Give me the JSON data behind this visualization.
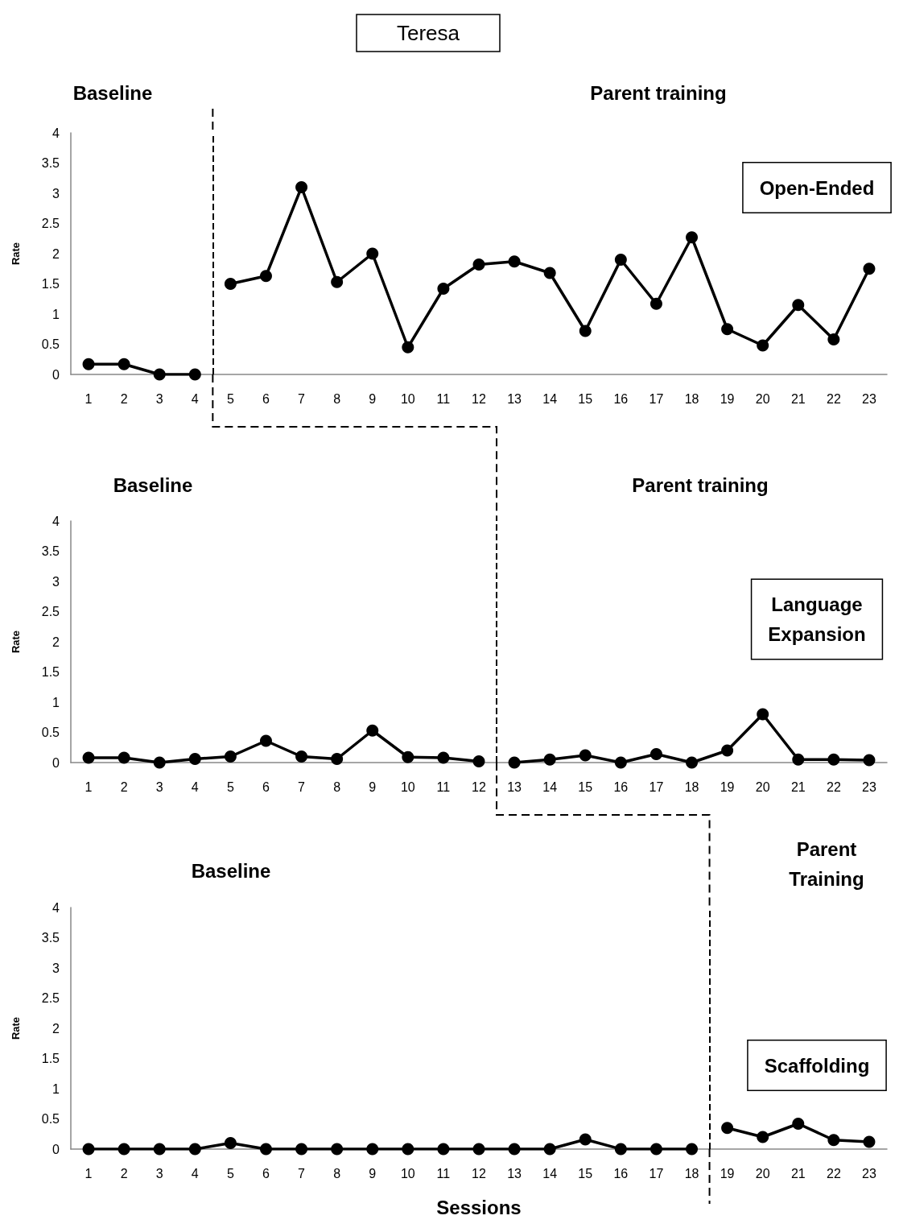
{
  "chart_data": [
    {
      "type": "line",
      "title": "Teresa",
      "ylabel": "Rate",
      "annotations": [
        "Baseline",
        "Parent training",
        "Open-Ended"
      ],
      "xlim": [
        0.5,
        23.5
      ],
      "xticks": [
        1,
        2,
        3,
        4,
        5,
        6,
        7,
        8,
        9,
        10,
        11,
        12,
        13,
        14,
        15,
        16,
        17,
        18,
        19,
        20,
        21,
        22,
        23
      ],
      "ylim": [
        0,
        4
      ],
      "yticks": [
        0,
        0.5,
        1,
        1.5,
        2,
        2.5,
        3,
        3.5,
        4
      ],
      "marker": "circle",
      "line_style": "solid",
      "ref_lines": [
        {
          "axis": "x",
          "value": 4.5,
          "line_style": "dashed",
          "color": "#000000"
        }
      ],
      "series": [
        {
          "color": "#000000",
          "x": [
            1,
            2,
            3,
            4
          ],
          "values": [
            0.17,
            0.17,
            0,
            0
          ]
        },
        {
          "color": "#000000",
          "x": [
            5,
            6,
            7,
            8,
            9,
            10,
            11,
            12,
            13,
            14,
            15,
            16,
            17,
            18,
            19,
            20,
            21,
            22,
            23
          ],
          "values": [
            1.5,
            1.63,
            3.1,
            1.53,
            2.0,
            0.45,
            1.42,
            1.82,
            1.87,
            1.68,
            0.72,
            1.9,
            1.17,
            2.27,
            0.75,
            0.48,
            1.15,
            0.58,
            1.75
          ]
        }
      ]
    },
    {
      "type": "line",
      "ylabel": "Rate",
      "annotations": [
        "Baseline",
        "Parent training",
        "Language\nExpansion"
      ],
      "xlim": [
        0.5,
        23.5
      ],
      "xticks": [
        1,
        2,
        3,
        4,
        5,
        6,
        7,
        8,
        9,
        10,
        11,
        12,
        13,
        14,
        15,
        16,
        17,
        18,
        19,
        20,
        21,
        22,
        23
      ],
      "ylim": [
        0,
        4
      ],
      "yticks": [
        0,
        0.5,
        1,
        1.5,
        2,
        2.5,
        3,
        3.5,
        4
      ],
      "marker": "circle",
      "line_style": "solid",
      "ref_lines": [
        {
          "axis": "x",
          "value": 12.5,
          "line_style": "dashed",
          "color": "#000000"
        }
      ],
      "series": [
        {
          "color": "#000000",
          "x": [
            1,
            2,
            3,
            4,
            5,
            6,
            7,
            8,
            9,
            10,
            11,
            12
          ],
          "values": [
            0.08,
            0.08,
            0,
            0.06,
            0.1,
            0.36,
            0.1,
            0.06,
            0.53,
            0.09,
            0.08,
            0.02
          ]
        },
        {
          "color": "#000000",
          "x": [
            13,
            14,
            15,
            16,
            17,
            18,
            19,
            20,
            21,
            22,
            23
          ],
          "values": [
            0,
            0.05,
            0.12,
            0,
            0.14,
            0,
            0.2,
            0.8,
            0.05,
            0.05,
            0.04
          ]
        }
      ]
    },
    {
      "type": "line",
      "ylabel": "Rate",
      "xlabel": "Sessions",
      "annotations": [
        "Baseline",
        "Parent\nTraining",
        "Scaffolding"
      ],
      "xlim": [
        0.5,
        23.5
      ],
      "xticks": [
        1,
        2,
        3,
        4,
        5,
        6,
        7,
        8,
        9,
        10,
        11,
        12,
        13,
        14,
        15,
        16,
        17,
        18,
        19,
        20,
        21,
        22,
        23
      ],
      "ylim": [
        0,
        4
      ],
      "yticks": [
        0,
        0.5,
        1,
        1.5,
        2,
        2.5,
        3,
        3.5,
        4
      ],
      "marker": "circle",
      "line_style": "solid",
      "ref_lines": [
        {
          "axis": "x",
          "value": 18.5,
          "line_style": "dashed",
          "color": "#000000"
        }
      ],
      "series": [
        {
          "color": "#000000",
          "x": [
            1,
            2,
            3,
            4,
            5,
            6,
            7,
            8,
            9,
            10,
            11,
            12,
            13,
            14,
            15,
            16,
            17,
            18
          ],
          "values": [
            0,
            0,
            0,
            0,
            0.1,
            0,
            0,
            0,
            0,
            0,
            0,
            0,
            0,
            0,
            0.16,
            0,
            0,
            0
          ]
        },
        {
          "color": "#000000",
          "x": [
            19,
            20,
            21,
            22,
            23
          ],
          "values": [
            0.35,
            0.2,
            0.42,
            0.15,
            0.12
          ]
        }
      ]
    }
  ]
}
